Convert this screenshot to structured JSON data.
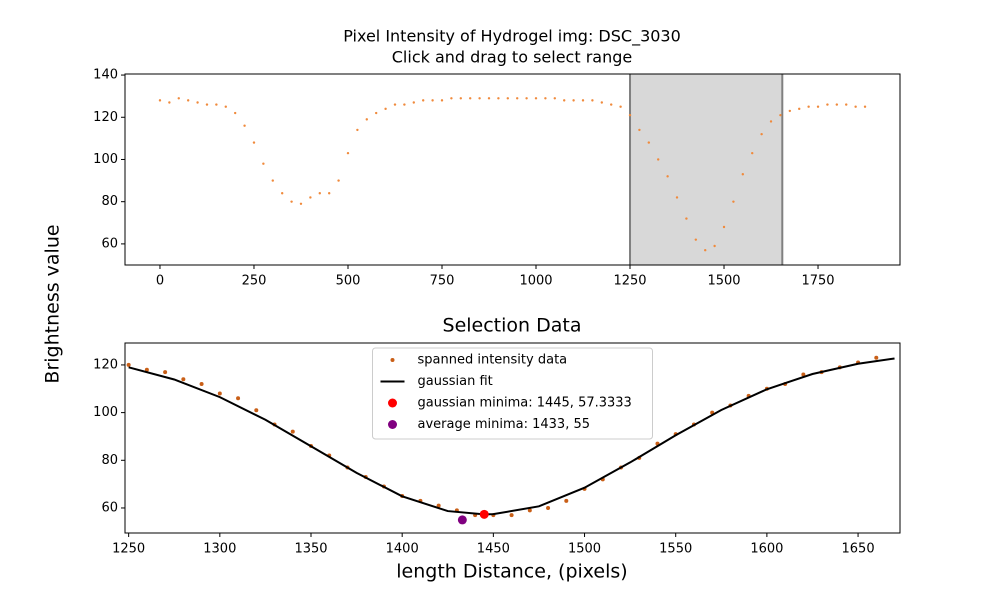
{
  "chart_data": [
    {
      "type": "scatter",
      "title": "Pixel Intensity of Hydrogel img: DSC_3030",
      "subtitle": "Click and drag to select range",
      "xlim": [
        -93,
        1968
      ],
      "ylim": [
        50,
        140.5
      ],
      "xticks": [
        0,
        250,
        500,
        750,
        1000,
        1250,
        1500,
        1750
      ],
      "yticks": [
        60,
        80,
        100,
        120,
        140
      ],
      "span": [
        1250,
        1655
      ],
      "span_color": "#d8d8d8",
      "series": [
        {
          "type": "scatter",
          "color": "#f08a3c",
          "x": [
            0,
            25,
            50,
            75,
            100,
            125,
            150,
            175,
            200,
            225,
            250,
            275,
            300,
            325,
            350,
            375,
            400,
            425,
            450,
            475,
            500,
            525,
            550,
            575,
            600,
            625,
            650,
            675,
            700,
            725,
            750,
            775,
            800,
            825,
            850,
            875,
            900,
            925,
            950,
            975,
            1000,
            1025,
            1050,
            1075,
            1100,
            1125,
            1150,
            1175,
            1200,
            1225,
            1250,
            1275,
            1300,
            1325,
            1350,
            1375,
            1400,
            1425,
            1450,
            1475,
            1500,
            1525,
            1550,
            1575,
            1600,
            1625,
            1650,
            1675,
            1700,
            1725,
            1750,
            1775,
            1800,
            1825,
            1850,
            1875
          ],
          "values": [
            128,
            127,
            129,
            128,
            127,
            126,
            126,
            125,
            122,
            116,
            108,
            98,
            90,
            84,
            80,
            79,
            82,
            84,
            84,
            90,
            103,
            114,
            119,
            122,
            124,
            126,
            126,
            127,
            128,
            128,
            128,
            129,
            129,
            129,
            129,
            129,
            129,
            129,
            129,
            129,
            129,
            129,
            129,
            128,
            128,
            128,
            128,
            127,
            126,
            125,
            121,
            114,
            108,
            100,
            92,
            82,
            72,
            62,
            57,
            59,
            68,
            80,
            93,
            103,
            112,
            118,
            121,
            123,
            124,
            125,
            125,
            126,
            126,
            126,
            125,
            125
          ]
        }
      ]
    },
    {
      "type": "scatter",
      "title": "Selection Data",
      "xlabel": "length Distance, (pixels)",
      "ylabel": "Brightness value",
      "xlim": [
        1248,
        1673
      ],
      "ylim": [
        49.5,
        129.2
      ],
      "xticks": [
        1250,
        1300,
        1350,
        1400,
        1450,
        1500,
        1550,
        1600,
        1650
      ],
      "yticks": [
        60,
        80,
        100,
        120
      ],
      "legend": "upper center",
      "series": [
        {
          "type": "scatter",
          "name": "spanned intensity data",
          "color": "#c95f17",
          "x": [
            1250,
            1260,
            1270,
            1280,
            1290,
            1300,
            1310,
            1320,
            1330,
            1340,
            1350,
            1360,
            1370,
            1380,
            1390,
            1400,
            1410,
            1420,
            1430,
            1440,
            1450,
            1460,
            1470,
            1480,
            1490,
            1500,
            1510,
            1520,
            1530,
            1540,
            1550,
            1560,
            1570,
            1580,
            1590,
            1600,
            1610,
            1620,
            1630,
            1640,
            1650,
            1660
          ],
          "values": [
            120,
            118,
            117,
            114,
            112,
            108,
            106,
            101,
            95,
            92,
            86,
            82,
            77,
            73,
            69,
            65,
            63,
            61,
            59,
            57,
            57,
            57,
            59,
            60,
            63,
            68,
            72,
            77,
            81,
            87,
            91,
            95,
            100,
            103,
            107,
            110,
            112,
            116,
            117,
            119,
            121,
            123
          ]
        },
        {
          "type": "line",
          "name": "gaussian fit",
          "color": "#000000",
          "x": [
            1250,
            1275,
            1300,
            1325,
            1350,
            1375,
            1400,
            1425,
            1445,
            1450,
            1475,
            1500,
            1525,
            1550,
            1575,
            1600,
            1625,
            1650,
            1670
          ],
          "values": [
            119.0,
            113.9,
            106.5,
            97.0,
            85.9,
            74.7,
            64.9,
            58.7,
            57.3,
            57.4,
            60.7,
            68.5,
            79.1,
            90.5,
            101.1,
            109.8,
            116.2,
            120.5,
            122.7
          ]
        },
        {
          "type": "point",
          "name": "gaussian minima: 1445, 57.3333",
          "color": "#ff0000",
          "x": [
            1445
          ],
          "values": [
            57.3333
          ]
        },
        {
          "type": "point",
          "name": "average minima: 1433, 55",
          "color": "#800080",
          "x": [
            1433
          ],
          "values": [
            55
          ]
        }
      ]
    }
  ]
}
